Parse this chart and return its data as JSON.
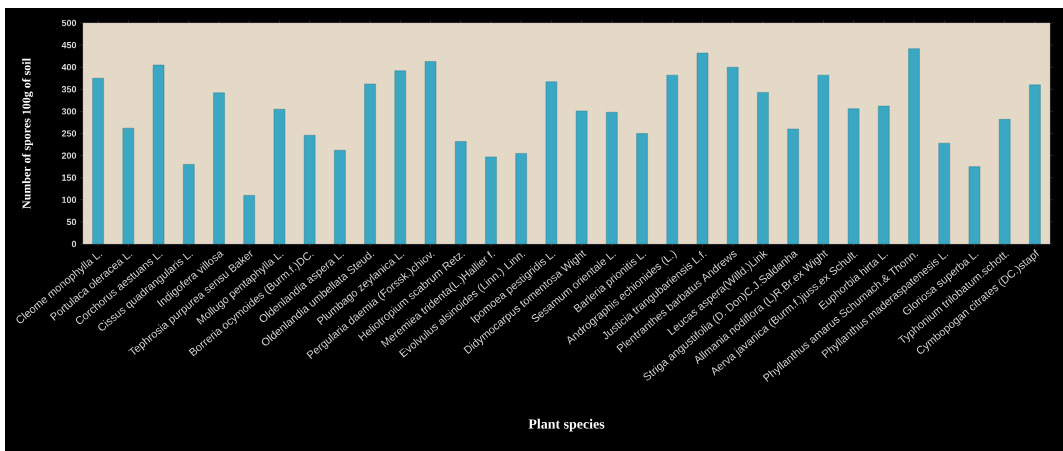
{
  "chart_data": {
    "type": "bar",
    "xlabel": "Plant species",
    "ylabel": "Number of spores 100g of soil",
    "categories": [
      "Cleome monophylla L.",
      "Portulaca oleracea L.",
      "Corchorus aestuans L.",
      "Cissus quadrangularis L.",
      "Indigofera villosa",
      "Tephrosia purpurea sensu Baker",
      "Mollugo pentaphylla L.",
      "Borreria ocymoides (Burm.f.)DC.",
      "Oldenlandia aspera L.",
      "Oldenlandia umbellata  Steud.",
      "Plumbago zeylanica L.",
      "Pergularia daemia  (Forssk.)chiov.",
      "Heliotropium scabrum Retz.",
      "Meremiea tridenta(L.)Hallier f.",
      "Evolvulus alsinoides  (Linn.) Linn.",
      "Ipomoea pestigridis L.",
      "Didymocarpus tomentosa  Wight",
      "Sesamum orientale L.",
      "Barleria prionitis L.",
      "Andrographis echionides (L.)",
      "Justicia trangubariensis L.f.",
      "Plentranthes barbatus  Andrews",
      "Leucas aspera(Willd.)Link",
      "Striga angustifolia  (D. Don)C.J.Saldanha",
      "Allmania nodiflora (L)R.Br.ex Wight",
      "Aerva javanica  (Burm.f.)juss.ex Schult.",
      "Euphorbia hirta L.",
      "Phyllanthus amarus Schumach.& Thonn.",
      "Phyllanthus maderaspatenesis  L.",
      "Gloriosa superba L.",
      "Typhonium  trilobatum.schott.",
      "Cymbopogan citrates (DC.)stapf"
    ],
    "values": [
      375,
      262,
      405,
      180,
      342,
      110,
      305,
      246,
      212,
      362,
      392,
      413,
      232,
      197,
      205,
      367,
      301,
      298,
      250,
      382,
      432,
      400,
      343,
      260,
      382,
      306,
      312,
      442,
      228,
      175,
      282,
      360
    ],
    "color": "#3aa7c3",
    "ylim": [
      0,
      500
    ],
    "yticks": [
      0,
      50,
      100,
      150,
      200,
      250,
      300,
      350,
      400,
      450,
      500
    ],
    "grid": false
  }
}
